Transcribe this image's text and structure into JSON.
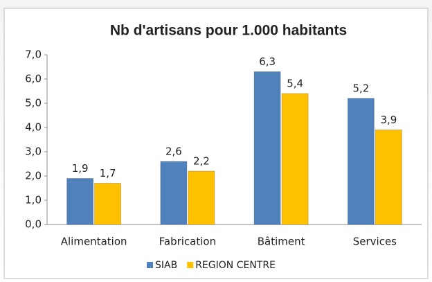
{
  "chart_data": {
    "type": "bar",
    "title": "Nb d'artisans pour 1.000 habitants",
    "categories": [
      "Alimentation",
      "Fabrication",
      "Bâtiment",
      "Services"
    ],
    "series": [
      {
        "name": "SIAB",
        "color": "#4f81bd",
        "values": [
          1.9,
          2.6,
          6.3,
          5.2
        ],
        "value_labels": [
          "1,9",
          "2,6",
          "6,3",
          "5,2"
        ]
      },
      {
        "name": "REGION CENTRE",
        "color": "#ffc000",
        "values": [
          1.7,
          2.2,
          5.4,
          3.9
        ],
        "value_labels": [
          "1,7",
          "2,2",
          "5,4",
          "3,9"
        ]
      }
    ],
    "ylim": [
      0,
      7
    ],
    "yticks": [
      {
        "value": 0,
        "label": "0,0"
      },
      {
        "value": 1,
        "label": "1,0"
      },
      {
        "value": 2,
        "label": "2,0"
      },
      {
        "value": 3,
        "label": "3,0"
      },
      {
        "value": 4,
        "label": "4,0"
      },
      {
        "value": 5,
        "label": "5,0"
      },
      {
        "value": 6,
        "label": "6,0"
      },
      {
        "value": 7,
        "label": "7,0"
      }
    ],
    "grid": false,
    "legend": "bottom"
  }
}
